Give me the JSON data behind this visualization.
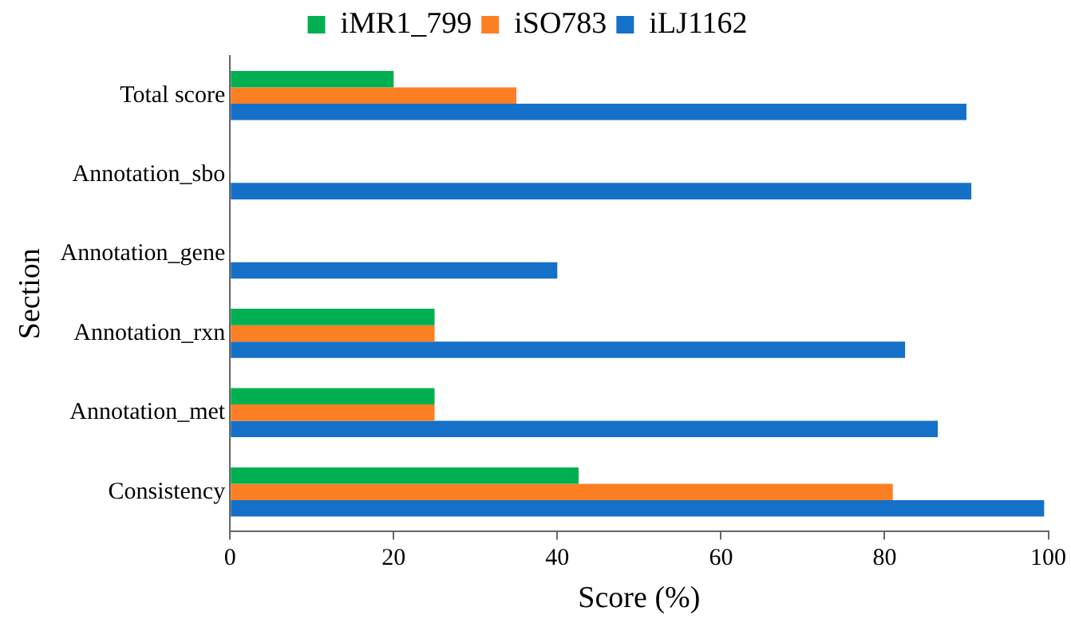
{
  "chart_data": {
    "type": "bar",
    "orientation": "horizontal",
    "xlabel": "Score (%)",
    "ylabel": "Section",
    "categories": [
      "Total score",
      "Annotation_sbo",
      "Annotation_gene",
      "Annotation_rxn",
      "Annotation_met",
      "Consistency"
    ],
    "series": [
      {
        "name": "iMR1_799",
        "color": "#00b050",
        "values": [
          20,
          null,
          null,
          25,
          25,
          42.6
        ]
      },
      {
        "name": "iSO783",
        "color": "#fd7f23",
        "values": [
          35,
          null,
          null,
          25,
          25,
          81
        ]
      },
      {
        "name": "iLJ1162",
        "color": "#1570c8",
        "values": [
          90,
          90.6,
          40,
          82.5,
          86.5,
          99.5
        ]
      }
    ],
    "xlim": [
      0,
      100
    ],
    "xticks": [
      0,
      20,
      40,
      60,
      80,
      100
    ],
    "grid": false,
    "legend": "top"
  }
}
